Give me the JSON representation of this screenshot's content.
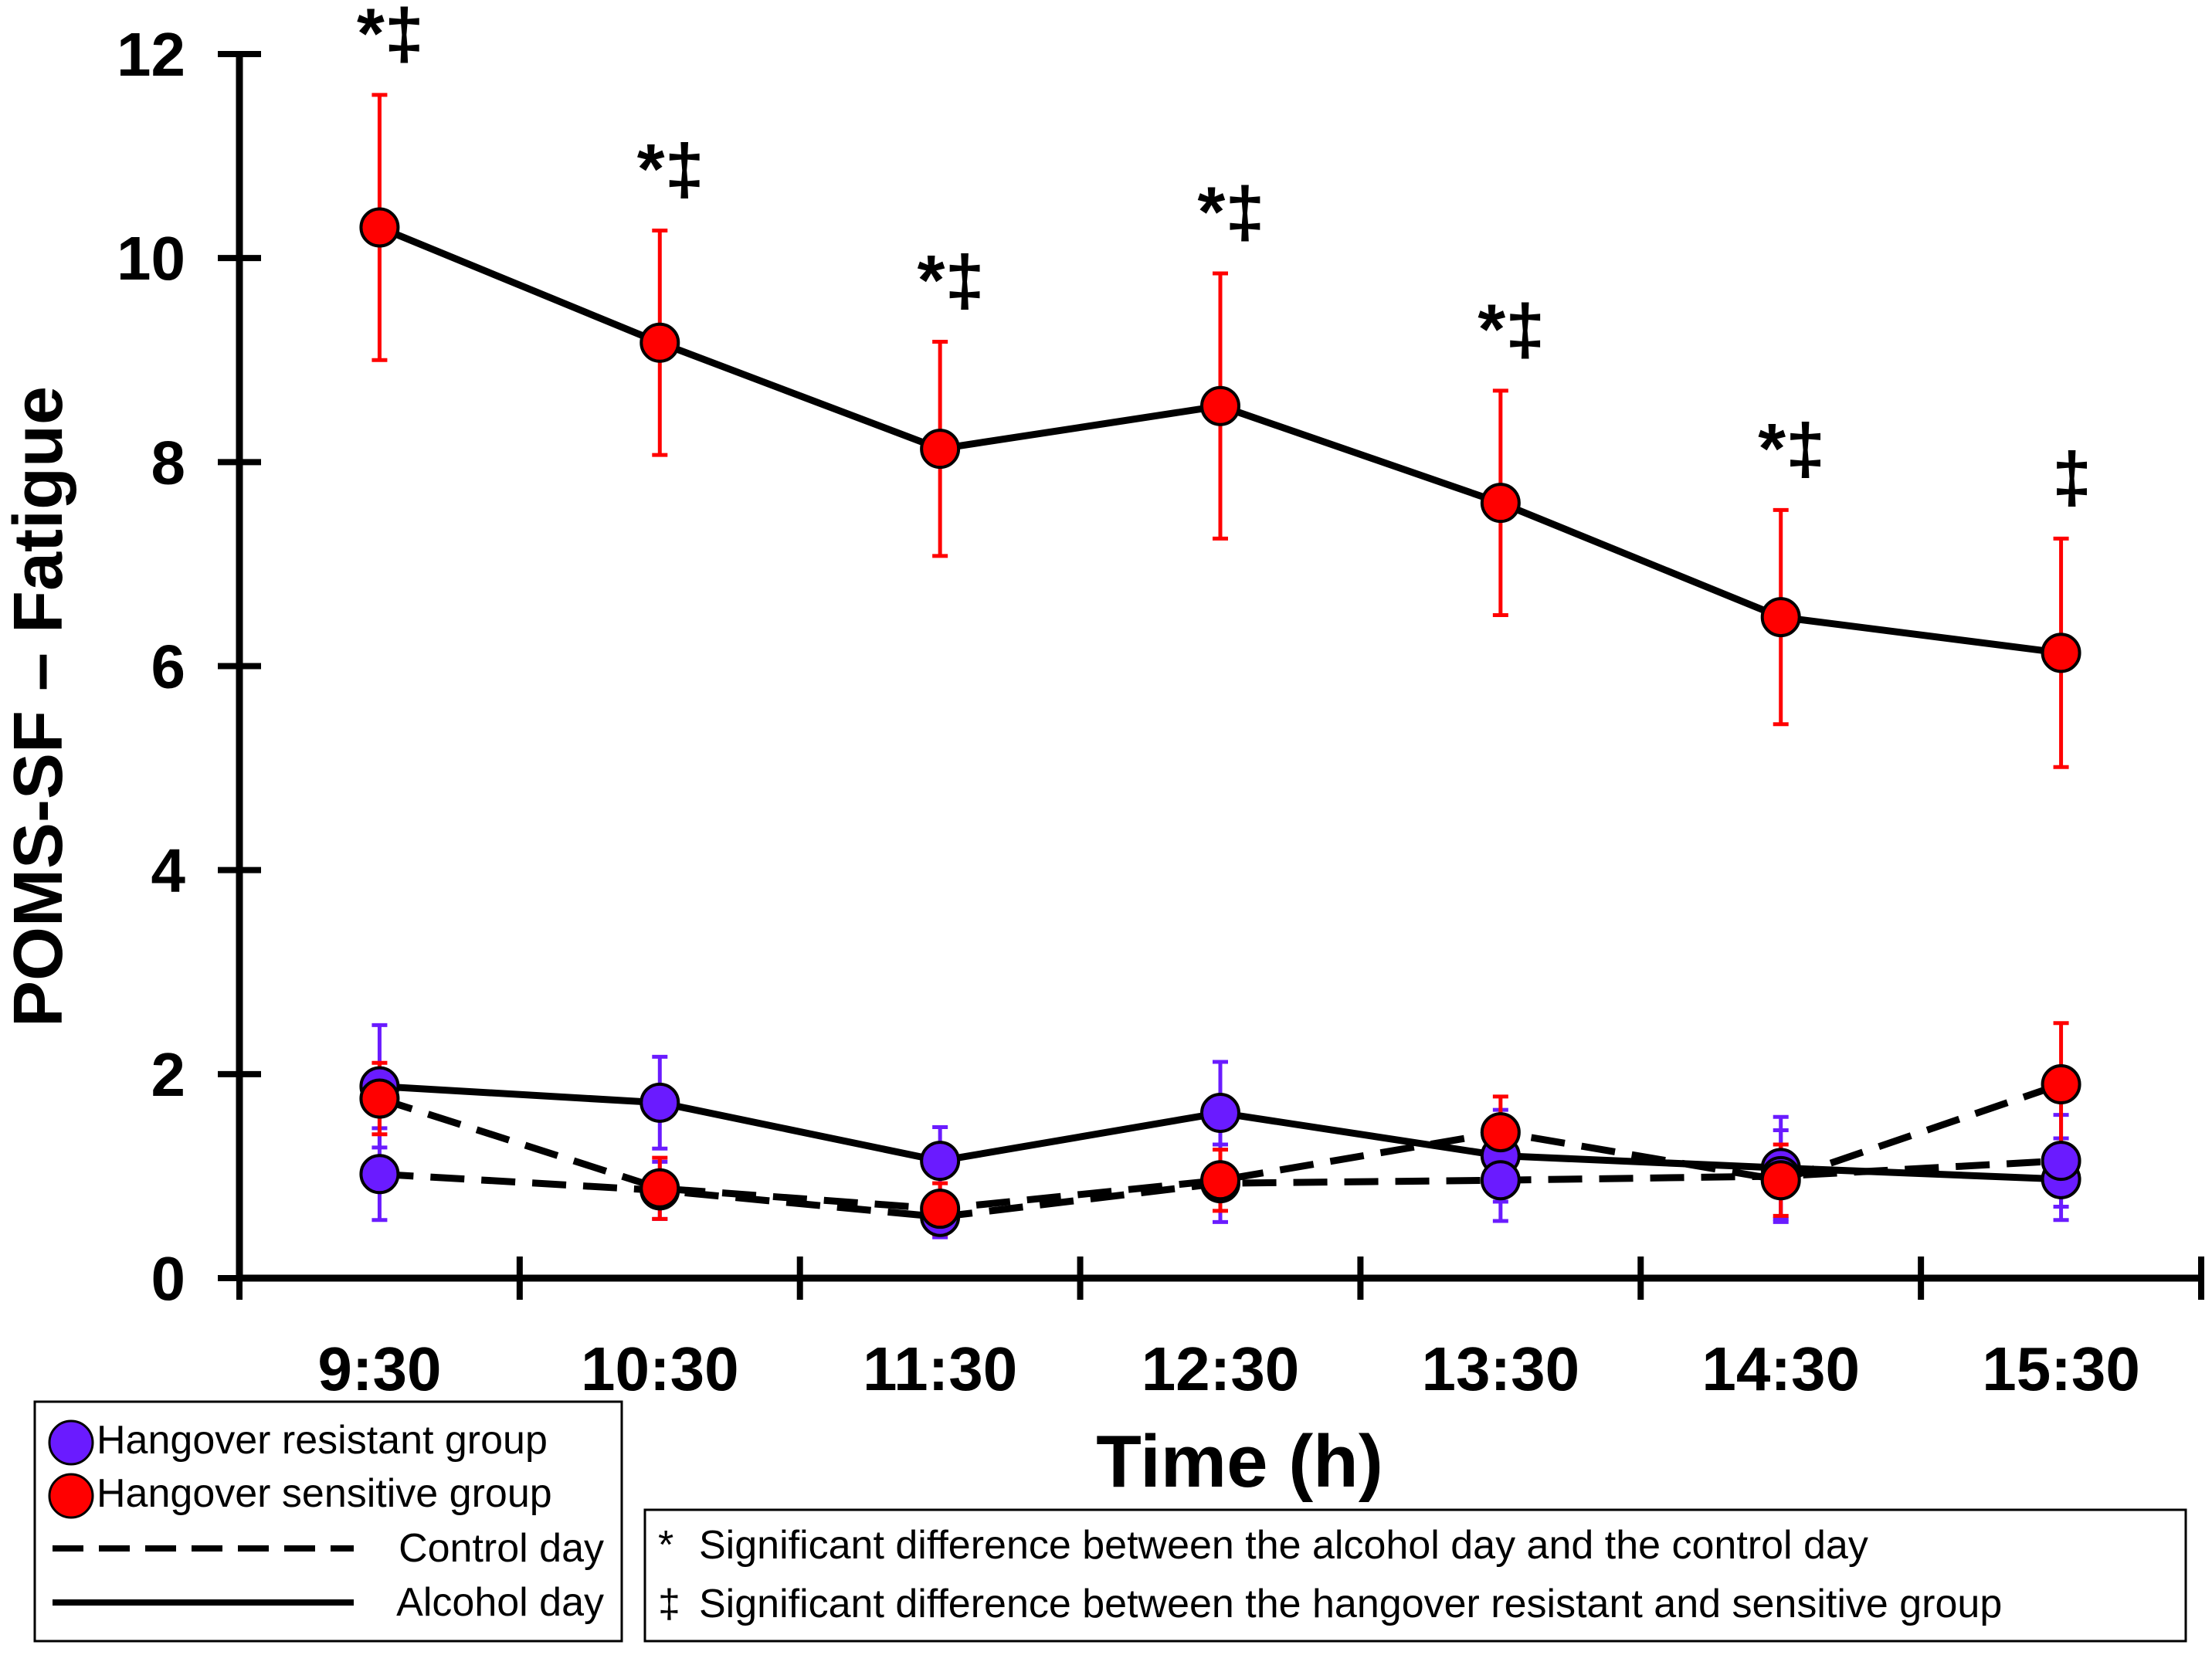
{
  "chart_data": {
    "type": "line",
    "title": "",
    "xlabel": "Time (h)",
    "ylabel": "POMS-SF – Fatigue",
    "ylim": [
      0,
      12
    ],
    "yticks": [
      0,
      2,
      4,
      6,
      8,
      10,
      12
    ],
    "categories": [
      "9:30",
      "10:30",
      "11:30",
      "12:30",
      "13:30",
      "14:30",
      "15:30"
    ],
    "series": [
      {
        "name": "Hangover sensitive group – Alcohol day",
        "group": "sensitive",
        "day": "alcohol",
        "color": "#ff0000",
        "values": [
          10.3,
          9.17,
          8.13,
          8.55,
          7.6,
          6.48,
          6.13
        ],
        "errors": [
          1.3,
          1.1,
          1.05,
          1.3,
          1.1,
          1.05,
          1.12
        ]
      },
      {
        "name": "Hangover resistant group – Alcohol day",
        "group": "resistant",
        "day": "alcohol",
        "color": "#6a1bff",
        "values": [
          1.88,
          1.72,
          1.15,
          1.62,
          1.2,
          1.08,
          0.97
        ],
        "errors": [
          0.6,
          0.45,
          0.33,
          0.5,
          0.45,
          0.5,
          0.4
        ]
      },
      {
        "name": "Hangover resistant group – Control day",
        "group": "resistant",
        "day": "control",
        "color": "#6a1bff",
        "values": [
          1.02,
          0.86,
          0.6,
          0.93,
          0.96,
          1.0,
          1.15
        ],
        "errors": [
          0.45,
          0.28,
          0.2,
          0.38,
          0.4,
          0.45,
          0.45
        ]
      },
      {
        "name": "Hangover sensitive group – Control day",
        "group": "sensitive",
        "day": "control",
        "color": "#ff0000",
        "values": [
          1.76,
          0.88,
          0.68,
          0.96,
          1.43,
          0.96,
          1.9
        ],
        "errors": [
          0.35,
          0.3,
          0.25,
          0.3,
          0.35,
          0.35,
          0.6
        ]
      }
    ],
    "significance": [
      "*‡",
      "*‡",
      "*‡",
      "*‡",
      "*‡",
      "*‡",
      "‡"
    ]
  },
  "legend": {
    "items": [
      {
        "label": "Hangover resistant group",
        "kind": "marker",
        "color": "#6a1bff"
      },
      {
        "label": "Hangover sensitive group",
        "kind": "marker",
        "color": "#ff0000"
      },
      {
        "label": "Control day",
        "kind": "dashed"
      },
      {
        "label": "Alcohol day",
        "kind": "solid"
      }
    ]
  },
  "notes": [
    {
      "symbol": "*",
      "text": "Significant difference between the alcohol day and the control day"
    },
    {
      "symbol": "‡",
      "text": "Significant difference between the hangover resistant and sensitive group"
    }
  ]
}
